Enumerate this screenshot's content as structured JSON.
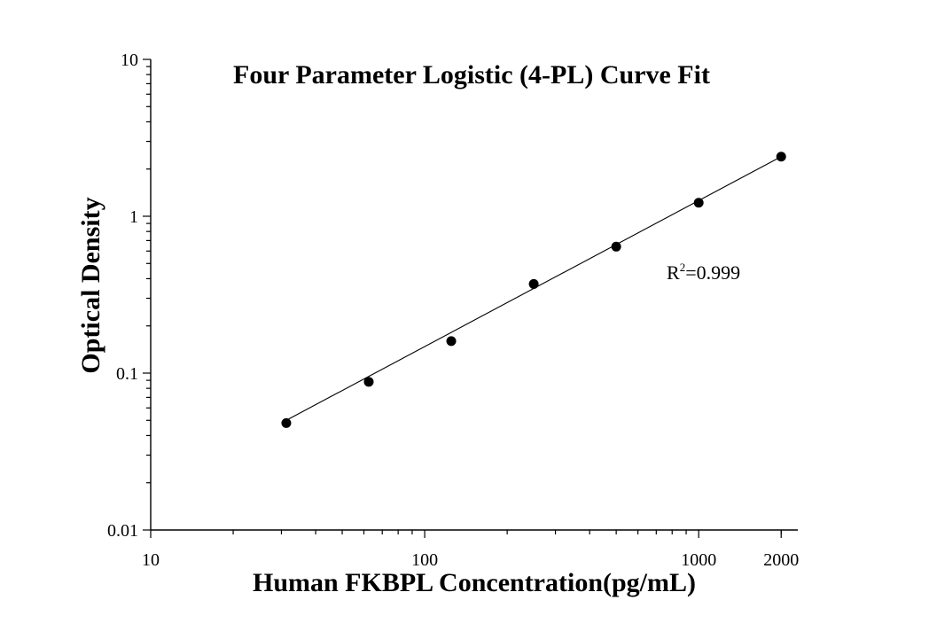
{
  "chart_data": {
    "type": "scatter",
    "title": "Four Parameter Logistic (4-PL) Curve Fit",
    "xlabel": "Human FKBPL Concentration(pg/mL)",
    "ylabel": "Optical Density",
    "xscale": "log",
    "yscale": "log",
    "xlim": [
      10,
      2300
    ],
    "ylim": [
      0.01,
      10
    ],
    "x_ticks": [
      {
        "value": 10,
        "label": "10"
      },
      {
        "value": 100,
        "label": "100"
      },
      {
        "value": 1000,
        "label": "1000"
      },
      {
        "value": 2000,
        "label": "2000"
      }
    ],
    "y_ticks": [
      {
        "value": 0.01,
        "label": "0.01"
      },
      {
        "value": 0.1,
        "label": "0.1"
      },
      {
        "value": 1,
        "label": "1"
      },
      {
        "value": 10,
        "label": "10"
      }
    ],
    "grid": false,
    "series": [
      {
        "x": [
          31.25,
          62.5,
          125,
          250,
          500,
          1000,
          2000
        ],
        "y": [
          0.048,
          0.088,
          0.16,
          0.37,
          0.64,
          1.22,
          2.4
        ]
      }
    ],
    "fit_line": {
      "x": [
        31.25,
        2000
      ],
      "y": [
        0.05,
        2.4
      ]
    },
    "annotation": {
      "prefix": "R",
      "superscript": "2",
      "suffix": "=0.999"
    },
    "colors": {
      "axis": "#000000",
      "points": "#000000",
      "line": "#000000"
    }
  }
}
